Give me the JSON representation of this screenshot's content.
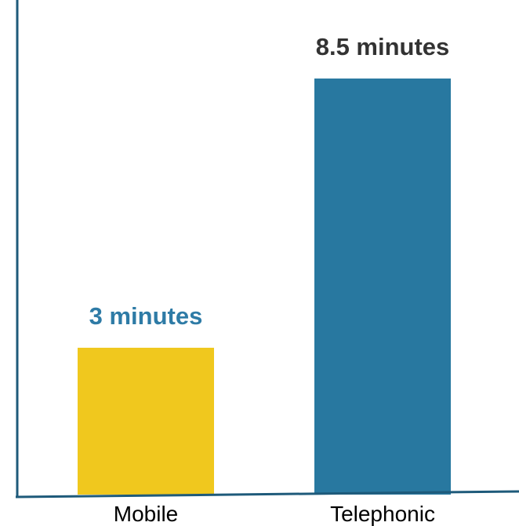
{
  "chart_data": {
    "type": "bar",
    "categories": [
      "Mobile",
      "Telephonic"
    ],
    "values": [
      3,
      8.5
    ],
    "data_labels": [
      "3 minutes",
      "8.5 minutes"
    ],
    "ylim": [
      0,
      10
    ],
    "grid": false,
    "legend": "none",
    "colors": {
      "bars": [
        "#f0c81e",
        "#2878a0"
      ],
      "data_labels": [
        "#2e7ba6",
        "#333333"
      ],
      "axis": "#1e5a7a"
    }
  }
}
